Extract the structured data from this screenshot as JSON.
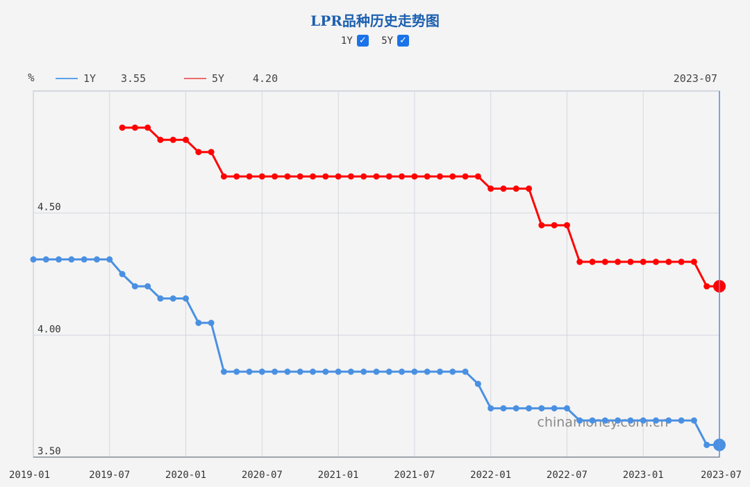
{
  "page": {
    "title": "LPR品种历史走势图",
    "unit": "%",
    "watermark": "chinamoney.com.cn",
    "toggles": [
      {
        "label": "1Y",
        "checked": true
      },
      {
        "label": "5Y",
        "checked": true
      }
    ],
    "legend": [
      {
        "name": "1Y",
        "value": "3.55",
        "color": "#5aa0ec"
      },
      {
        "name": "5Y",
        "value": "4.20",
        "color": "#ee6a6a"
      }
    ],
    "hover_label": "2023-07",
    "checkmark": "✓"
  },
  "chart_data": {
    "type": "line",
    "title": "LPR品种历史走势图",
    "ylabel": "%",
    "ylim": [
      3.5,
      5.0
    ],
    "yticks": [
      3.5,
      4.0,
      4.5
    ],
    "ytick_labels": [
      "3.50",
      "4.00",
      "4.50"
    ],
    "xlim": [
      "2019-01",
      "2023-07"
    ],
    "xtick_labels": [
      "2019-01",
      "2019-07",
      "2020-01",
      "2020-07",
      "2021-01",
      "2021-07",
      "2022-01",
      "2022-07",
      "2023-01",
      "2023-07"
    ],
    "grid": true,
    "legend_position": "top-left",
    "x": [
      "2019-01",
      "2019-02",
      "2019-03",
      "2019-04",
      "2019-05",
      "2019-06",
      "2019-07",
      "2019-08",
      "2019-09",
      "2019-10",
      "2019-11",
      "2019-12",
      "2020-01",
      "2020-02",
      "2020-03",
      "2020-04",
      "2020-05",
      "2020-06",
      "2020-07",
      "2020-08",
      "2020-09",
      "2020-10",
      "2020-11",
      "2020-12",
      "2021-01",
      "2021-02",
      "2021-03",
      "2021-04",
      "2021-05",
      "2021-06",
      "2021-07",
      "2021-08",
      "2021-09",
      "2021-10",
      "2021-11",
      "2021-12",
      "2022-01",
      "2022-02",
      "2022-03",
      "2022-04",
      "2022-05",
      "2022-06",
      "2022-07",
      "2022-08",
      "2022-09",
      "2022-10",
      "2022-11",
      "2022-12",
      "2023-01",
      "2023-02",
      "2023-03",
      "2023-04",
      "2023-05",
      "2023-06",
      "2023-07"
    ],
    "series": [
      {
        "name": "1Y",
        "color": "#4a90e2",
        "values": [
          4.31,
          4.31,
          4.31,
          4.31,
          4.31,
          4.31,
          4.31,
          4.25,
          4.2,
          4.2,
          4.15,
          4.15,
          4.15,
          4.05,
          4.05,
          3.85,
          3.85,
          3.85,
          3.85,
          3.85,
          3.85,
          3.85,
          3.85,
          3.85,
          3.85,
          3.85,
          3.85,
          3.85,
          3.85,
          3.85,
          3.85,
          3.85,
          3.85,
          3.85,
          3.85,
          3.8,
          3.7,
          3.7,
          3.7,
          3.7,
          3.7,
          3.7,
          3.7,
          3.65,
          3.65,
          3.65,
          3.65,
          3.65,
          3.65,
          3.65,
          3.65,
          3.65,
          3.65,
          3.55,
          3.55
        ]
      },
      {
        "name": "5Y",
        "color": "#ff0000",
        "values": [
          null,
          null,
          null,
          null,
          null,
          null,
          null,
          4.85,
          4.85,
          4.85,
          4.8,
          4.8,
          4.8,
          4.75,
          4.75,
          4.65,
          4.65,
          4.65,
          4.65,
          4.65,
          4.65,
          4.65,
          4.65,
          4.65,
          4.65,
          4.65,
          4.65,
          4.65,
          4.65,
          4.65,
          4.65,
          4.65,
          4.65,
          4.65,
          4.65,
          4.65,
          4.6,
          4.6,
          4.6,
          4.6,
          4.45,
          4.45,
          4.45,
          4.3,
          4.3,
          4.3,
          4.3,
          4.3,
          4.3,
          4.3,
          4.3,
          4.3,
          4.3,
          4.2,
          4.2
        ]
      }
    ]
  }
}
